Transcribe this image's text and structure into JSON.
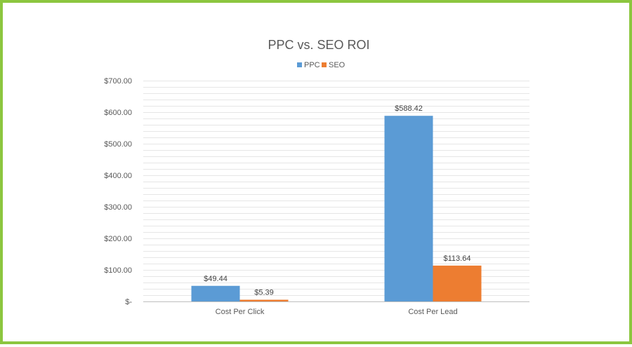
{
  "chart_data": {
    "type": "bar",
    "title": "PPC vs. SEO ROI",
    "categories": [
      "Cost Per Click",
      "Cost Per Lead"
    ],
    "series": [
      {
        "name": "PPC",
        "color": "#5b9bd5",
        "values": [
          49.44,
          588.42
        ],
        "labels": [
          "$49.44",
          "$588.42"
        ]
      },
      {
        "name": "SEO",
        "color": "#ed7d31",
        "values": [
          5.39,
          113.64
        ],
        "labels": [
          "$5.39",
          "$113.64"
        ]
      }
    ],
    "ylim": [
      0,
      700
    ],
    "y_ticks": [
      {
        "value": 0,
        "label": "$-"
      },
      {
        "value": 100,
        "label": "$100.00"
      },
      {
        "value": 200,
        "label": "$200.00"
      },
      {
        "value": 300,
        "label": "$300.00"
      },
      {
        "value": 400,
        "label": "$400.00"
      },
      {
        "value": 500,
        "label": "$500.00"
      },
      {
        "value": 600,
        "label": "$600.00"
      },
      {
        "value": 700,
        "label": "$700.00"
      }
    ],
    "minor_gridline_step": 20,
    "grid": true,
    "legend_position": "top-center",
    "colors": {
      "frame": "#8cc63f",
      "gridline": "#e6e6e6",
      "axis": "#bfbfbf"
    }
  }
}
